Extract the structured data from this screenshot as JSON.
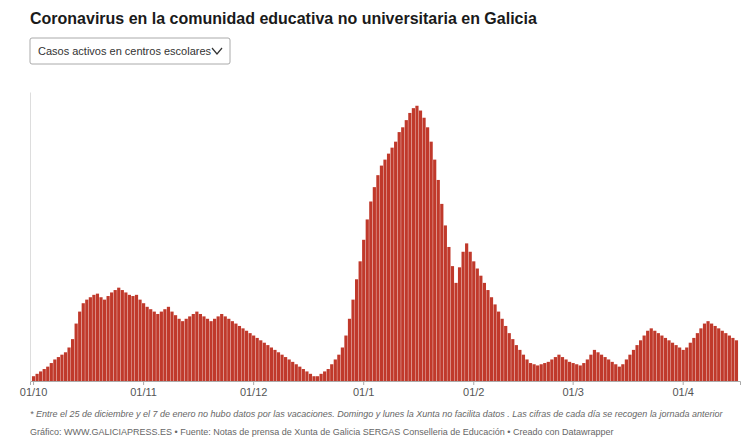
{
  "chart_data": {
    "type": "bar",
    "title": "Coronavirus en la comunidad educativa no universitaria en Galicia",
    "annotations": [
      "Casos activos en centros escolares",
      "* Entre el 25 de diciembre y el 7 de enero no hubo datos por las vacaciones. Domingo y lunes la Xunta no facilita datos . Las cifras de cada día se recogen la jornada anterior",
      "Gráfico: WWW.GALICIAPRESS.ES • Fuente: Notas de prensa de Xunta de Galicia SERGAS Conselleria de Educación • Creado con Datawrapper"
    ],
    "color": "#c0392b",
    "tick_labels": "x",
    "ylim": [
      0,
      241.5
    ],
    "categories": [
      "01/10",
      null,
      null,
      null,
      null,
      null,
      null,
      null,
      null,
      null,
      null,
      null,
      null,
      null,
      null,
      null,
      null,
      null,
      null,
      null,
      null,
      null,
      null,
      null,
      null,
      null,
      null,
      null,
      null,
      null,
      null,
      "01/11",
      null,
      null,
      null,
      null,
      null,
      null,
      null,
      null,
      null,
      null,
      null,
      null,
      null,
      null,
      null,
      null,
      null,
      null,
      null,
      null,
      null,
      null,
      null,
      null,
      null,
      null,
      null,
      null,
      null,
      null,
      "01/12",
      null,
      null,
      null,
      null,
      null,
      null,
      null,
      null,
      null,
      null,
      null,
      null,
      null,
      null,
      null,
      null,
      null,
      null,
      null,
      null,
      null,
      null,
      null,
      null,
      null,
      null,
      null,
      null,
      null,
      null,
      "01/1",
      null,
      null,
      null,
      null,
      null,
      null,
      null,
      null,
      null,
      null,
      null,
      null,
      null,
      null,
      null,
      null,
      null,
      null,
      null,
      null,
      null,
      null,
      null,
      null,
      null,
      null,
      null,
      null,
      null,
      null,
      "01/2",
      null,
      null,
      null,
      null,
      null,
      null,
      null,
      null,
      null,
      null,
      null,
      null,
      null,
      null,
      null,
      null,
      null,
      null,
      null,
      null,
      null,
      null,
      null,
      null,
      null,
      null,
      null,
      "01/3",
      null,
      null,
      null,
      null,
      null,
      null,
      null,
      null,
      null,
      null,
      null,
      null,
      null,
      null,
      null,
      null,
      null,
      null,
      null,
      null,
      null,
      null,
      null,
      null,
      null,
      null,
      null,
      null,
      null,
      null,
      "01/4",
      null,
      null,
      null,
      null,
      null,
      null,
      null,
      null,
      null,
      null,
      null,
      null,
      null,
      null,
      null
    ],
    "values": [
      4,
      6,
      8,
      10,
      12,
      15,
      18,
      20,
      22,
      24,
      28,
      35,
      48,
      58,
      65,
      68,
      70,
      72,
      73,
      70,
      68,
      71,
      74,
      76,
      78,
      76,
      74,
      72,
      71,
      72,
      68,
      65,
      62,
      60,
      58,
      56,
      58,
      60,
      62,
      58,
      55,
      52,
      50,
      52,
      54,
      56,
      58,
      56,
      54,
      52,
      50,
      52,
      54,
      56,
      54,
      52,
      50,
      48,
      46,
      44,
      42,
      40,
      38,
      36,
      34,
      32,
      30,
      28,
      26,
      24,
      22,
      20,
      18,
      16,
      14,
      12,
      10,
      8,
      6,
      4,
      4,
      6,
      8,
      10,
      14,
      18,
      22,
      28,
      38,
      52,
      68,
      85,
      100,
      118,
      135,
      150,
      162,
      172,
      180,
      185,
      190,
      195,
      200,
      208,
      212,
      218,
      224,
      228,
      230,
      226,
      220,
      212,
      200,
      185,
      168,
      148,
      130,
      112,
      96,
      82,
      95,
      108,
      115,
      108,
      100,
      94,
      88,
      82,
      76,
      70,
      64,
      58,
      52,
      46,
      40,
      35,
      30,
      26,
      22,
      18,
      15,
      14,
      13,
      14,
      15,
      16,
      18,
      20,
      22,
      20,
      18,
      16,
      15,
      14,
      13,
      15,
      18,
      22,
      26,
      24,
      22,
      20,
      18,
      16,
      14,
      12,
      14,
      18,
      22,
      26,
      30,
      34,
      38,
      42,
      44,
      42,
      40,
      38,
      36,
      34,
      32,
      30,
      28,
      26,
      28,
      32,
      36,
      40,
      44,
      48,
      50,
      48,
      46,
      44,
      42,
      40,
      38,
      36,
      34
    ]
  }
}
